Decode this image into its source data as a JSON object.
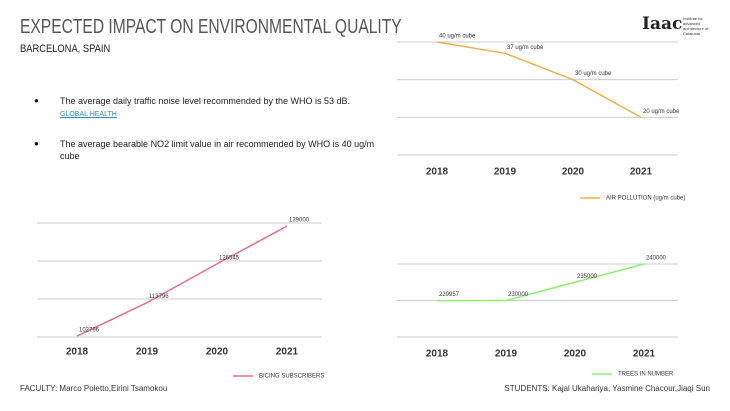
{
  "title": "EXPECTED IMPACT ON ENVIRONMENTAL QUALITY",
  "subtitle": "BARCELONA, SPAIN",
  "logo": "Iaac",
  "logo_caption": "Institute for advanced architecture of Catalonia",
  "bullets": [
    {
      "text": "The average daily traffic noise level recommended by the WHO is 53 dB.",
      "link": "GLOBAL HEALTH"
    },
    {
      "text": "The average bearable NO2 limit value in air recommended by WHO is  40 ug/m cube"
    }
  ],
  "faculty": "FACULTY: Marco Poletto,Eirini Tsamokou",
  "students": "STUDENTS: Kajal Ukahariya, Yasmine Chacour,Jiaqi Sun",
  "chart_data": [
    {
      "type": "line",
      "categories": [
        "2018",
        "2019",
        "2020",
        "2021"
      ],
      "series": [
        {
          "name": "AIR POLLUTION (ug/m cube)",
          "color": "#e8b04a",
          "values": [
            40,
            37,
            30,
            20
          ],
          "value_labels": [
            "40 ug/m cube",
            "37 ug/m cube",
            "30 ug/m cube",
            "20 ug/m cube"
          ]
        }
      ],
      "ylim": [
        10,
        40
      ],
      "yticks": [
        10,
        20,
        30,
        40
      ],
      "grid": true,
      "tick_labels": false,
      "legend": "bottom"
    },
    {
      "type": "line",
      "categories": [
        "2018",
        "2019",
        "2020",
        "2021"
      ],
      "series": [
        {
          "name": "BICING SUBSCRIBERS",
          "color": "#e0708a",
          "values": [
            102796,
            113796,
            126545,
            139000
          ]
        }
      ],
      "ylim": [
        102500,
        140000
      ],
      "yticks": [
        102500,
        115000,
        127500,
        140000
      ],
      "grid": true,
      "tick_labels": false,
      "legend": "bottom"
    },
    {
      "type": "line",
      "categories": [
        "2018",
        "2019",
        "2020",
        "2021"
      ],
      "series": [
        {
          "name": "TREES IN NUMBER",
          "color": "#8cf06a",
          "values": [
            229957,
            230000,
            235000,
            240000
          ]
        }
      ],
      "ylim": [
        220000,
        240000
      ],
      "yticks": [
        220000,
        230000,
        240000
      ],
      "grid": true,
      "tick_labels": false,
      "legend": "bottom"
    }
  ]
}
